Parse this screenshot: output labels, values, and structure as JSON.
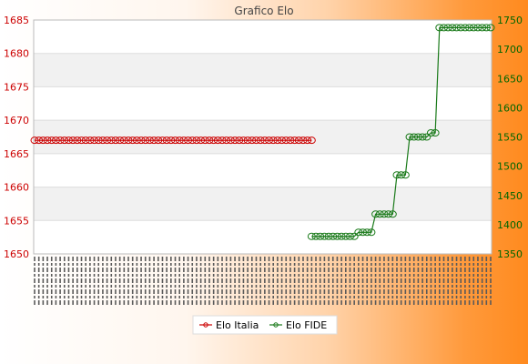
{
  "chart_data": {
    "type": "line",
    "title": "Grafico Elo",
    "left_axis": {
      "ylim": [
        1650,
        1685
      ],
      "ticks": [
        1650,
        1655,
        1660,
        1665,
        1670,
        1675,
        1680,
        1685
      ],
      "tick_color": "#cc0000"
    },
    "right_axis": {
      "ylim": [
        1350,
        1750
      ],
      "ticks": [
        1350,
        1400,
        1450,
        1500,
        1550,
        1600,
        1650,
        1700,
        1750
      ],
      "tick_color": "#006600"
    },
    "grid": true,
    "legend": "bottom-center",
    "n_points": 108,
    "series": [
      {
        "name": "Elo Italia",
        "axis": "left",
        "color": "#cc0000",
        "segments": [
          {
            "from": 0,
            "to": 65,
            "value": 1667
          }
        ]
      },
      {
        "name": "Elo FIDE",
        "axis": "right",
        "color": "#1a7a1a",
        "segments": [
          {
            "from": 65,
            "to": 75,
            "value": 1380
          },
          {
            "from": 76,
            "to": 79,
            "value": 1387
          },
          {
            "from": 80,
            "to": 84,
            "value": 1418
          },
          {
            "from": 85,
            "to": 87,
            "value": 1485
          },
          {
            "from": 88,
            "to": 92,
            "value": 1550
          },
          {
            "from": 93,
            "to": 94,
            "value": 1557
          },
          {
            "from": 95,
            "to": 107,
            "value": 1737
          }
        ]
      }
    ]
  }
}
